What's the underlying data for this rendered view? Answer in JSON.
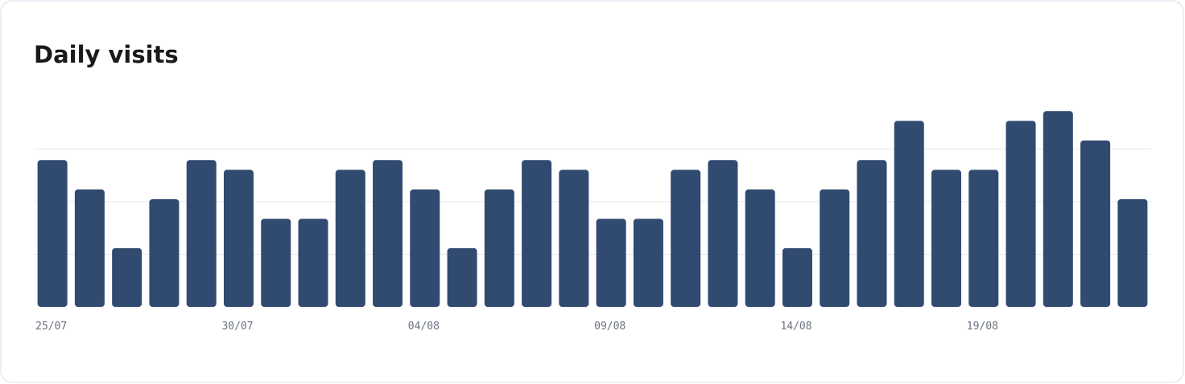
{
  "chart_data": {
    "type": "bar",
    "title": "Daily visits",
    "categories": [
      "25/07",
      null,
      null,
      null,
      null,
      "30/07",
      null,
      null,
      null,
      null,
      "04/08",
      null,
      null,
      null,
      null,
      "09/08",
      null,
      null,
      null,
      null,
      "14/08",
      null,
      null,
      null,
      null,
      "19/08",
      null,
      null,
      null,
      null
    ],
    "values": [
      15,
      12,
      6,
      11,
      15,
      14,
      9,
      9,
      14,
      15,
      12,
      6,
      12,
      15,
      14,
      9,
      9,
      14,
      15,
      12,
      6,
      12,
      15,
      19,
      14,
      14,
      19,
      20,
      17,
      11
    ],
    "color": "#314a70",
    "ylim": [
      0,
      21.5
    ],
    "grid": true
  }
}
